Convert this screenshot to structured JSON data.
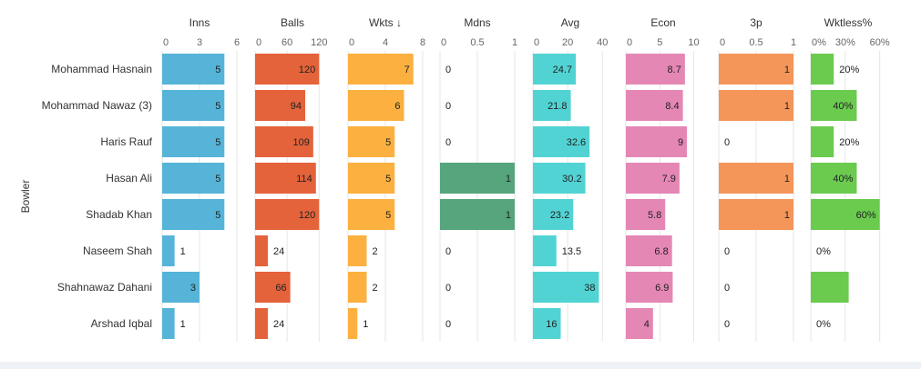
{
  "chart_data": {
    "type": "bar",
    "orientation": "horizontal",
    "y_axis_label": "Bowler",
    "categories": [
      "Mohammad Hasnain",
      "Mohammad Nawaz (3)",
      "Haris Rauf",
      "Hasan Ali",
      "Shadab Khan",
      "Naseem Shah",
      "Shahnawaz Dahani",
      "Arshad Iqbal"
    ],
    "panels": [
      {
        "key": "inns",
        "title": "Inns",
        "color": "#56b4d9",
        "max": 6,
        "ticks": [
          "0",
          "3",
          "6"
        ],
        "tick_values": [
          0,
          3,
          6
        ],
        "values": [
          5,
          5,
          5,
          5,
          5,
          1,
          3,
          1
        ],
        "labels": [
          "5",
          "5",
          "5",
          "5",
          "5",
          "1",
          "3",
          "1"
        ]
      },
      {
        "key": "balls",
        "title": "Balls",
        "color": "#e4633a",
        "max": 140,
        "ticks": [
          "0",
          "60",
          "120"
        ],
        "tick_values": [
          0,
          60,
          120
        ],
        "values": [
          120,
          94,
          109,
          114,
          120,
          24,
          66,
          24
        ],
        "labels": [
          "120",
          "94",
          "109",
          "114",
          "120",
          "24",
          "66",
          "24"
        ]
      },
      {
        "key": "wkts",
        "title": "Wkts ↓",
        "color": "#fbb040",
        "max": 8,
        "ticks": [
          "0",
          "4",
          "8"
        ],
        "tick_values": [
          0,
          4,
          8
        ],
        "values": [
          7,
          6,
          5,
          5,
          5,
          2,
          2,
          1
        ],
        "labels": [
          "7",
          "6",
          "5",
          "5",
          "5",
          "2",
          "2",
          "1"
        ]
      },
      {
        "key": "mdns",
        "title": "Mdns",
        "color": "#56a57c",
        "max": 1,
        "ticks": [
          "0",
          "0.5",
          "1"
        ],
        "tick_values": [
          0,
          0.5,
          1
        ],
        "values": [
          0,
          0,
          0,
          1,
          1,
          0,
          0,
          0
        ],
        "labels": [
          "0",
          "0",
          "0",
          "1",
          "1",
          "0",
          "0",
          "0"
        ]
      },
      {
        "key": "avg",
        "title": "Avg",
        "color": "#52d3d3",
        "max": 43,
        "ticks": [
          "0",
          "20",
          "40"
        ],
        "tick_values": [
          0,
          20,
          40
        ],
        "values": [
          24.7,
          21.8,
          32.6,
          30.2,
          23.2,
          13.5,
          38,
          16
        ],
        "labels": [
          "24.7",
          "21.8",
          "32.6",
          "30.2",
          "23.2",
          "13.5",
          "38",
          "16"
        ]
      },
      {
        "key": "econ",
        "title": "Econ",
        "color": "#e587b5",
        "max": 11,
        "ticks": [
          "0",
          "5",
          "10"
        ],
        "tick_values": [
          0,
          5,
          10
        ],
        "values": [
          8.7,
          8.4,
          9,
          7.9,
          5.8,
          6.8,
          6.9,
          4
        ],
        "labels": [
          "8.7",
          "8.4",
          "9",
          "7.9",
          "5.8",
          "6.8",
          "6.9",
          "4"
        ]
      },
      {
        "key": "3p",
        "title": "3p",
        "color": "#f4965a",
        "max": 1,
        "ticks": [
          "0",
          "0.5",
          "1"
        ],
        "tick_values": [
          0,
          0.5,
          1
        ],
        "values": [
          1,
          1,
          0,
          1,
          1,
          0,
          0,
          0
        ],
        "labels": [
          "1",
          "1",
          "0",
          "1",
          "1",
          "0",
          "0",
          "0"
        ]
      },
      {
        "key": "wktless",
        "title": "Wktless%",
        "color": "#6acb4f",
        "max": 65,
        "ticks": [
          "0%",
          "30%",
          "60%"
        ],
        "tick_values": [
          0,
          30,
          60
        ],
        "values": [
          20,
          40,
          20,
          40,
          60,
          0,
          33,
          0
        ],
        "labels": [
          "20%",
          "40%",
          "20%",
          "40%",
          "60%",
          "0%",
          "",
          "0%"
        ]
      }
    ]
  }
}
